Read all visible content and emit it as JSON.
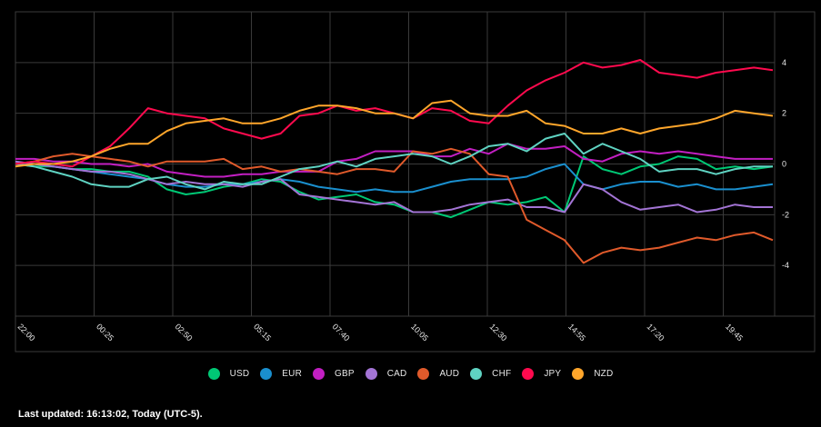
{
  "chart_data": {
    "type": "line",
    "title": "",
    "xlabel": "",
    "ylabel": "",
    "ylim": [
      -6,
      6
    ],
    "grid": true,
    "legend_position": "bottom",
    "x_ticks": [
      "22:00",
      "00:25",
      "02:50",
      "05:15",
      "07:40",
      "10:05",
      "12:30",
      "14:55",
      "17:20",
      "19:45"
    ],
    "y_ticks": [
      4,
      2,
      0,
      -2,
      -4
    ],
    "x": [
      "22:00",
      "22:35",
      "23:10",
      "23:45",
      "00:20",
      "00:55",
      "01:30",
      "02:05",
      "02:40",
      "03:15",
      "03:50",
      "04:25",
      "05:00",
      "05:35",
      "06:10",
      "06:45",
      "07:20",
      "07:55",
      "08:30",
      "09:05",
      "09:40",
      "10:15",
      "10:50",
      "11:25",
      "12:00",
      "12:35",
      "13:10",
      "13:45",
      "14:20",
      "14:55",
      "15:30",
      "16:05",
      "16:40",
      "17:15",
      "17:50",
      "18:25",
      "19:00",
      "19:35",
      "20:10",
      "20:45",
      "21:00"
    ],
    "series": [
      {
        "name": "USD",
        "color": "#00c875",
        "values": [
          0.0,
          -0.1,
          -0.1,
          -0.2,
          -0.2,
          -0.3,
          -0.3,
          -0.5,
          -1.0,
          -1.2,
          -1.1,
          -0.9,
          -0.8,
          -0.6,
          -0.7,
          -1.1,
          -1.4,
          -1.3,
          -1.2,
          -1.5,
          -1.6,
          -1.9,
          -1.9,
          -2.1,
          -1.8,
          -1.5,
          -1.6,
          -1.5,
          -1.3,
          -1.9,
          0.3,
          -0.2,
          -0.4,
          -0.1,
          0.0,
          0.3,
          0.2,
          -0.2,
          -0.1,
          -0.2,
          -0.1
        ]
      },
      {
        "name": "EUR",
        "color": "#1a8fce",
        "values": [
          0.0,
          0.0,
          -0.1,
          -0.2,
          -0.3,
          -0.4,
          -0.5,
          -0.6,
          -0.8,
          -0.9,
          -0.9,
          -0.8,
          -0.8,
          -0.7,
          -0.6,
          -0.7,
          -0.9,
          -1.0,
          -1.1,
          -1.0,
          -1.1,
          -1.1,
          -0.9,
          -0.7,
          -0.6,
          -0.6,
          -0.6,
          -0.5,
          -0.2,
          0.0,
          -0.8,
          -1.0,
          -0.8,
          -0.7,
          -0.7,
          -0.9,
          -0.8,
          -1.0,
          -1.0,
          -0.9,
          -0.8
        ]
      },
      {
        "name": "GBP",
        "color": "#c21fc2",
        "values": [
          0.2,
          0.2,
          0.1,
          0.1,
          0.0,
          0.0,
          -0.1,
          0.0,
          -0.3,
          -0.4,
          -0.5,
          -0.5,
          -0.4,
          -0.4,
          -0.3,
          -0.3,
          -0.3,
          0.1,
          0.2,
          0.5,
          0.5,
          0.5,
          0.3,
          0.3,
          0.6,
          0.4,
          0.8,
          0.6,
          0.6,
          0.7,
          0.2,
          0.1,
          0.4,
          0.5,
          0.4,
          0.5,
          0.4,
          0.3,
          0.2,
          0.2,
          0.2
        ]
      },
      {
        "name": "CAD",
        "color": "#a374d5",
        "values": [
          0.1,
          0.0,
          -0.1,
          -0.2,
          -0.3,
          -0.3,
          -0.4,
          -0.6,
          -0.8,
          -0.7,
          -0.8,
          -0.8,
          -0.9,
          -0.7,
          -0.6,
          -1.2,
          -1.3,
          -1.4,
          -1.5,
          -1.6,
          -1.5,
          -1.9,
          -1.9,
          -1.8,
          -1.6,
          -1.5,
          -1.4,
          -1.7,
          -1.7,
          -1.9,
          -0.8,
          -1.0,
          -1.5,
          -1.8,
          -1.7,
          -1.6,
          -1.9,
          -1.8,
          -1.6,
          -1.7,
          -1.7
        ]
      },
      {
        "name": "AUD",
        "color": "#e05a2b",
        "values": [
          0.0,
          0.1,
          0.3,
          0.4,
          0.3,
          0.2,
          0.1,
          -0.1,
          0.1,
          0.1,
          0.1,
          0.2,
          -0.2,
          -0.1,
          -0.3,
          -0.2,
          -0.3,
          -0.4,
          -0.2,
          -0.2,
          -0.3,
          0.5,
          0.4,
          0.6,
          0.4,
          -0.4,
          -0.5,
          -2.2,
          -2.6,
          -3.0,
          -3.9,
          -3.5,
          -3.3,
          -3.4,
          -3.3,
          -3.1,
          -2.9,
          -3.0,
          -2.8,
          -2.7,
          -3.0
        ]
      },
      {
        "name": "CHF",
        "color": "#5fd3c2",
        "values": [
          0.0,
          -0.1,
          -0.3,
          -0.5,
          -0.8,
          -0.9,
          -0.9,
          -0.6,
          -0.5,
          -0.8,
          -1.0,
          -0.7,
          -0.8,
          -0.8,
          -0.5,
          -0.2,
          -0.1,
          0.1,
          -0.1,
          0.2,
          0.3,
          0.4,
          0.3,
          0.0,
          0.3,
          0.7,
          0.8,
          0.5,
          1.0,
          1.2,
          0.4,
          0.8,
          0.5,
          0.2,
          -0.3,
          -0.2,
          -0.2,
          -0.4,
          -0.2,
          -0.1,
          -0.1
        ]
      },
      {
        "name": "JPY",
        "color": "#ff0a4e",
        "values": [
          0.0,
          0.1,
          0.0,
          -0.1,
          0.3,
          0.7,
          1.4,
          2.2,
          2.0,
          1.9,
          1.8,
          1.4,
          1.2,
          1.0,
          1.2,
          1.9,
          2.0,
          2.3,
          2.1,
          2.2,
          2.0,
          1.8,
          2.2,
          2.1,
          1.7,
          1.6,
          2.3,
          2.9,
          3.3,
          3.6,
          4.0,
          3.8,
          3.9,
          4.1,
          3.6,
          3.5,
          3.4,
          3.6,
          3.7,
          3.8,
          3.7
        ]
      },
      {
        "name": "NZD",
        "color": "#ffa62b",
        "values": [
          -0.1,
          0.0,
          0.0,
          0.1,
          0.3,
          0.6,
          0.8,
          0.8,
          1.3,
          1.6,
          1.7,
          1.8,
          1.6,
          1.6,
          1.8,
          2.1,
          2.3,
          2.3,
          2.2,
          2.0,
          2.0,
          1.8,
          2.4,
          2.5,
          2.0,
          1.9,
          1.9,
          2.1,
          1.6,
          1.5,
          1.2,
          1.2,
          1.4,
          1.2,
          1.4,
          1.5,
          1.6,
          1.8,
          2.1,
          2.0,
          1.9
        ]
      }
    ]
  },
  "legend": {
    "items": [
      {
        "label": "USD",
        "color": "#00c875"
      },
      {
        "label": "EUR",
        "color": "#1a8fce"
      },
      {
        "label": "GBP",
        "color": "#c21fc2"
      },
      {
        "label": "CAD",
        "color": "#a374d5"
      },
      {
        "label": "AUD",
        "color": "#e05a2b"
      },
      {
        "label": "CHF",
        "color": "#5fd3c2"
      },
      {
        "label": "JPY",
        "color": "#ff0a4e"
      },
      {
        "label": "NZD",
        "color": "#ffa62b"
      }
    ]
  },
  "footer": {
    "last_updated": "Last updated: 16:13:02, Today (UTC-5)."
  },
  "colors": {
    "background": "#000000",
    "grid": "#3a3a3a",
    "text": "#e6e6e6"
  }
}
